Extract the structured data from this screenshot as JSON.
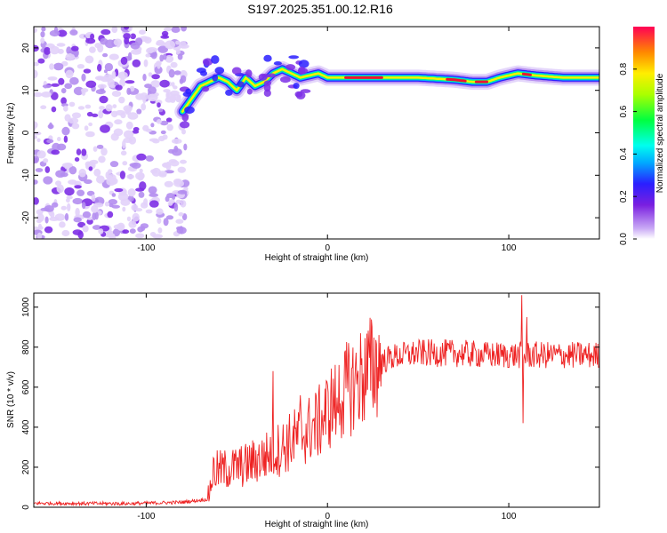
{
  "title": "S197.2025.351.00.12.R16",
  "chart_data": [
    {
      "type": "heatmap",
      "name": "spectrogram",
      "xlabel": "Height of straight line (km)",
      "ylabel": "Frequency (Hz)",
      "xlim": [
        -162,
        150
      ],
      "ylim": [
        -25,
        25
      ],
      "xticks": [
        -100,
        0,
        100
      ],
      "xtick_labels": [
        "-100",
        "0",
        "100"
      ],
      "yticks": [
        -20,
        -10,
        0,
        10,
        20
      ],
      "ytick_labels": [
        "-20",
        "-10",
        "0",
        "10",
        "20"
      ],
      "ridge": [
        [
          -80,
          5
        ],
        [
          -75,
          8
        ],
        [
          -70,
          11
        ],
        [
          -65,
          12
        ],
        [
          -60,
          13
        ],
        [
          -55,
          12
        ],
        [
          -50,
          10
        ],
        [
          -45,
          13
        ],
        [
          -40,
          11
        ],
        [
          -35,
          12
        ],
        [
          -30,
          14
        ],
        [
          -25,
          15
        ],
        [
          -20,
          14
        ],
        [
          -15,
          13
        ],
        [
          -10,
          13.5
        ],
        [
          -5,
          14
        ],
        [
          0,
          13
        ],
        [
          10,
          13
        ],
        [
          30,
          13
        ],
        [
          50,
          13
        ],
        [
          70,
          12.5
        ],
        [
          80,
          12
        ],
        [
          88,
          12
        ],
        [
          95,
          13
        ],
        [
          105,
          14
        ],
        [
          115,
          13.5
        ],
        [
          130,
          13
        ],
        [
          150,
          13
        ]
      ],
      "noise_region_x": [
        -162,
        -78
      ],
      "colorbar": {
        "label": "Normalized spectral amplitude",
        "ticks": [
          0.0,
          0.2,
          0.4,
          0.6,
          0.8
        ],
        "tick_labels": [
          "0.0",
          "0.2",
          "0.4",
          "0.6",
          "0.8"
        ],
        "range": [
          0,
          1
        ]
      }
    },
    {
      "type": "line",
      "name": "snr",
      "xlabel": "Height of straight line (km)",
      "ylabel": "SNR (10 * v/v)",
      "xlim": [
        -162,
        150
      ],
      "ylim": [
        0,
        1070
      ],
      "xticks": [
        -100,
        0,
        100
      ],
      "xtick_labels": [
        "-100",
        "0",
        "100"
      ],
      "yticks": [
        0,
        200,
        400,
        600,
        800,
        1000
      ],
      "ytick_labels": [
        "0",
        "200",
        "400",
        "600",
        "800",
        "1000"
      ],
      "color": "#ee2222",
      "trend": [
        [
          -162,
          20
        ],
        [
          -110,
          18
        ],
        [
          -80,
          25
        ],
        [
          -66,
          40
        ],
        [
          -63,
          180
        ],
        [
          -55,
          190
        ],
        [
          -45,
          210
        ],
        [
          -35,
          250
        ],
        [
          -25,
          300
        ],
        [
          -15,
          360
        ],
        [
          -5,
          420
        ],
        [
          5,
          540
        ],
        [
          15,
          620
        ],
        [
          25,
          700
        ],
        [
          35,
          750
        ],
        [
          50,
          770
        ],
        [
          70,
          770
        ],
        [
          90,
          760
        ],
        [
          105,
          760
        ],
        [
          120,
          760
        ],
        [
          150,
          760
        ]
      ],
      "spikes": [
        [
          -30,
          680
        ],
        [
          -15,
          560
        ],
        [
          5,
          470
        ],
        [
          107,
          1060
        ],
        [
          108,
          420
        ],
        [
          110,
          950
        ]
      ]
    }
  ]
}
